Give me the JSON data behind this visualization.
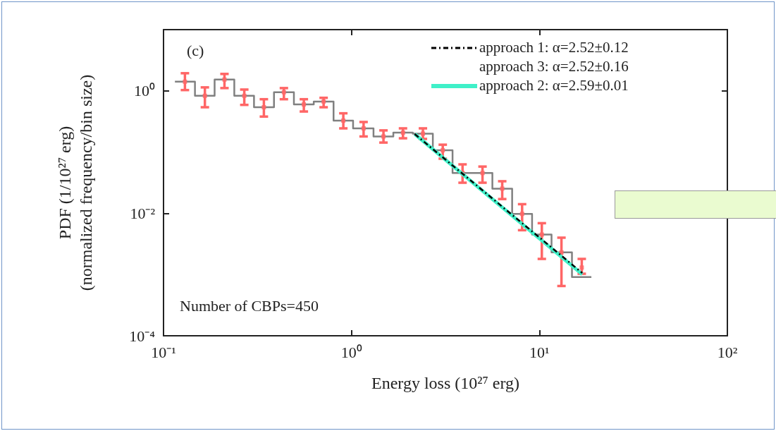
{
  "chart_data": {
    "type": "histogram",
    "xlabel": "Energy loss (10²⁷ erg)",
    "ylabel": "PDF (1/10²⁷ erg)\n(normalized frequency/bin size)",
    "log": "xy",
    "grid": false,
    "legend": "top right",
    "marker": "none",
    "xlim": [
      0.1,
      100
    ],
    "xticks": [
      {
        "value": 0.1,
        "label": "10⁻¹"
      },
      {
        "value": 1,
        "label": "10⁰"
      },
      {
        "value": 10,
        "label": "10¹"
      },
      {
        "value": 100,
        "label": "10²"
      }
    ],
    "ylim": [
      0.0001,
      10
    ],
    "yticks": [
      {
        "value": 0.0001,
        "label": "10⁻⁴"
      },
      {
        "value": 0.01,
        "label": "10⁻²"
      },
      {
        "value": 1,
        "label": "10⁰"
      }
    ],
    "bins": [
      0.115,
      0.147,
      0.187,
      0.238,
      0.303,
      0.387,
      0.494,
      0.63,
      0.803,
      1.02,
      1.31,
      1.67,
      2.12,
      2.71,
      3.45,
      4.41,
      5.62,
      7.16,
      9.14,
      11.6,
      14.9,
      18.9
    ],
    "series": [
      {
        "color": "#808080",
        "values": [
          1.41,
          0.83,
          1.53,
          0.83,
          0.54,
          0.95,
          0.6,
          0.67,
          0.327,
          0.244,
          0.18,
          0.208,
          0.2,
          0.107,
          0.0456,
          0.0456,
          0.0253,
          0.0098,
          0.0045,
          0.0023,
          0.00091
        ]
      },
      {
        "type": "scatter",
        "color": "#ff6666",
        "marker": "square",
        "x": [
          0.13,
          0.166,
          0.211,
          0.269,
          0.342,
          0.437,
          0.558,
          0.711,
          0.905,
          1.16,
          1.48,
          1.88,
          2.4,
          3.06,
          3.9,
          4.98,
          6.34,
          8.09,
          10.3,
          13.1,
          16.8
        ],
        "values": [
          1.41,
          0.83,
          1.53,
          0.83,
          0.54,
          0.95,
          0.6,
          0.67,
          0.327,
          0.244,
          0.18,
          0.208,
          0.2,
          0.107,
          0.0456,
          0.0456,
          0.0253,
          0.0098,
          0.0045,
          0.0023,
          0.0013
        ],
        "errors": [
          [
            1.03,
            1.94
          ],
          [
            0.54,
            1.14
          ],
          [
            1.11,
            1.89
          ],
          [
            0.59,
            1.05
          ],
          [
            0.38,
            0.73
          ],
          [
            0.73,
            1.11
          ],
          [
            0.46,
            0.73
          ],
          [
            0.54,
            0.77
          ],
          [
            0.244,
            0.43
          ],
          [
            0.18,
            0.31
          ],
          [
            0.143,
            0.226
          ],
          [
            0.168,
            0.244
          ],
          [
            0.164,
            0.244
          ],
          [
            0.078,
            0.132
          ],
          [
            0.0316,
            0.063
          ],
          [
            0.0316,
            0.058
          ],
          [
            0.0171,
            0.0334
          ],
          [
            0.0053,
            0.0141
          ],
          [
            0.0018,
            0.0069
          ],
          [
            0.00065,
            0.004
          ],
          [
            0.00103,
            0.0018
          ]
        ]
      },
      {
        "type": "line",
        "name": "approach 1: α=2.52±0.12",
        "color": "#000000",
        "line_style": "dashed",
        "x": [
          2.17,
          16.9
        ],
        "values": [
          0.197,
          0.00106
        ]
      },
      {
        "type": "line",
        "name": "approach 3: α=2.52±0.16"
      },
      {
        "type": "line",
        "name": "approach 2: α=2.59±0.01",
        "color": "#3ff0c8",
        "line_style": "solid",
        "x": [
          2.17,
          16.9
        ],
        "values": [
          0.197,
          0.00101
        ]
      }
    ],
    "annotations": [
      "(c)",
      "Number of CBPs=450"
    ]
  }
}
